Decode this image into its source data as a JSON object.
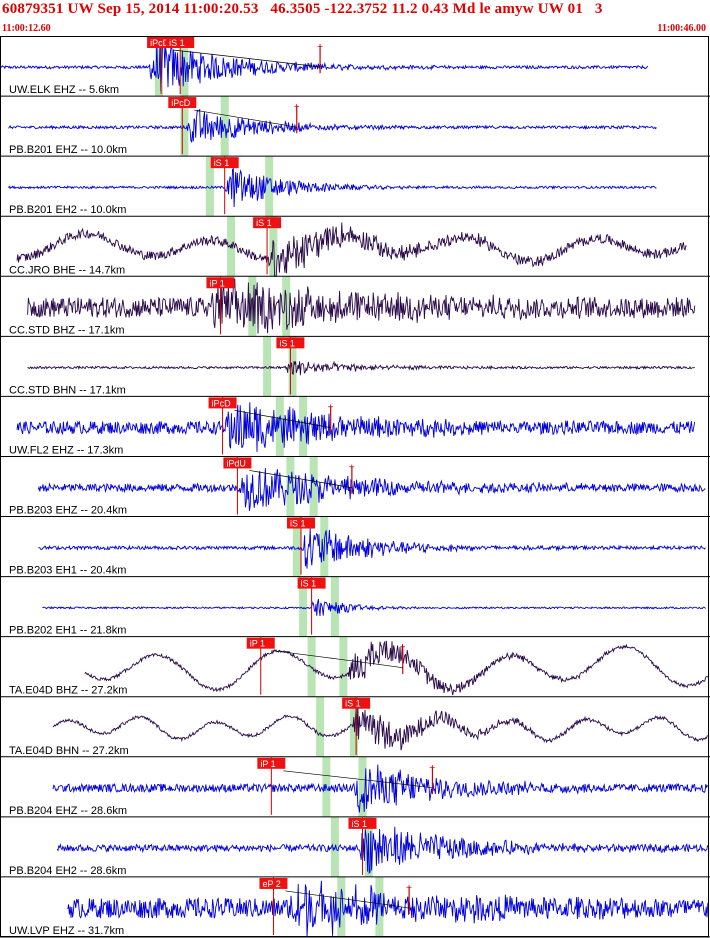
{
  "header": {
    "event_line": "60879351 UW Sep 15, 2014 11:00:20.53   46.3505 -122.3752 11.2 0.43 Md le amyw UW 01   3",
    "start_time": "11:00:12.60",
    "end_time": "11:00:46.00"
  },
  "time_window": {
    "start_s": 12.6,
    "end_s": 46.0
  },
  "colors": {
    "text": "#e00000",
    "trace_vertical": "#0000dd",
    "trace_broadband": "#2a0a4a",
    "pick_box": "#ee1111",
    "pick_line": "#cc0000",
    "band": "#b9e4b4",
    "border": "#000000"
  },
  "traces": [
    {
      "label": "UW.ELK EHZ -- 5.6km",
      "color": "blue",
      "noise": 0.05,
      "event_s": 19.6,
      "amp": 1.0,
      "decay": 3.5,
      "period": 0,
      "drift": 0,
      "start_s": 12.6,
      "end_s": 43.2,
      "picks": [
        {
          "text": "iPcD",
          "time_s": 20.2
        },
        {
          "text": "iS 1",
          "time_s": 21.1
        }
      ],
      "coda_mark_s": 27.7
    },
    {
      "label": "PB.B201 EHZ -- 10.0km",
      "color": "blue",
      "noise": 0.05,
      "event_s": 21.4,
      "amp": 0.7,
      "decay": 3.0,
      "period": 0,
      "drift": 0,
      "start_s": 13.0,
      "end_s": 43.6,
      "picks": [
        {
          "text": "iPcD",
          "time_s": 21.2
        }
      ],
      "coda_mark_s": 26.6
    },
    {
      "label": "PB.B201 EH2 -- 10.0km",
      "color": "blue",
      "noise": 0.04,
      "event_s": 23.2,
      "amp": 0.8,
      "decay": 2.5,
      "period": 0,
      "drift": 0,
      "start_s": 13.0,
      "end_s": 43.6,
      "picks": [
        {
          "text": "iS 1",
          "time_s": 23.2
        }
      ],
      "coda_mark_s": null
    },
    {
      "label": "CC.JRO BHE -- 14.7km",
      "color": "purple",
      "noise": 0.16,
      "event_s": 25.2,
      "amp": 0.7,
      "decay": 5.0,
      "period": 6.0,
      "drift": 0.35,
      "start_s": 13.4,
      "end_s": 45.0,
      "picks": [
        {
          "text": "iS 1",
          "time_s": 25.2
        }
      ],
      "coda_mark_s": null
    },
    {
      "label": "CC.STD BHZ -- 17.1km",
      "color": "purple",
      "noise": 0.35,
      "event_s": 22.5,
      "amp": 0.9,
      "decay": 6.0,
      "period": 0,
      "drift": 0,
      "start_s": 13.9,
      "end_s": 45.4,
      "picks": [
        {
          "text": "iP 1",
          "time_s": 23.0
        }
      ],
      "coda_mark_s": null
    },
    {
      "label": "CC.STD BHN -- 17.1km",
      "color": "purple",
      "noise": 0.04,
      "event_s": 26.0,
      "amp": 0.3,
      "decay": 3.0,
      "period": 0,
      "drift": 0,
      "start_s": 13.9,
      "end_s": 45.4,
      "picks": [
        {
          "text": "iS 1",
          "time_s": 26.3
        }
      ],
      "coda_mark_s": null
    },
    {
      "label": "UW.FL2 EHZ -- 17.3km",
      "color": "blue",
      "noise": 0.22,
      "event_s": 23.2,
      "amp": 0.9,
      "decay": 5.0,
      "period": 0,
      "drift": 0,
      "start_s": 13.4,
      "end_s": 45.4,
      "picks": [
        {
          "text": "iPcD",
          "time_s": 23.1
        }
      ],
      "coda_mark_s": 28.2
    },
    {
      "label": "PB.B203 EHZ -- 20.4km",
      "color": "blue",
      "noise": 0.14,
      "event_s": 23.9,
      "amp": 0.8,
      "decay": 5.0,
      "period": 0,
      "drift": 0,
      "start_s": 14.4,
      "end_s": 45.9,
      "picks": [
        {
          "text": "iPdU",
          "time_s": 23.8
        }
      ],
      "coda_mark_s": 29.2
    },
    {
      "label": "PB.B203 EH1 -- 20.4km",
      "color": "blue",
      "noise": 0.06,
      "event_s": 26.8,
      "amp": 0.85,
      "decay": 3.0,
      "period": 0,
      "drift": 0,
      "start_s": 14.4,
      "end_s": 45.9,
      "picks": [
        {
          "text": "iS 1",
          "time_s": 26.8
        }
      ],
      "coda_mark_s": null
    },
    {
      "label": "PB.B202 EH1 -- 21.8km",
      "color": "blue",
      "noise": 0.03,
      "event_s": 27.2,
      "amp": 0.4,
      "decay": 1.5,
      "period": 0,
      "drift": 0,
      "start_s": 14.6,
      "end_s": 45.9,
      "picks": [
        {
          "text": "iS 1",
          "time_s": 27.3
        }
      ],
      "coda_mark_s": null
    },
    {
      "label": "TA.E04D BHZ -- 27.2km",
      "color": "purple",
      "noise": 0.06,
      "event_s": 29.0,
      "amp": 0.6,
      "decay": 4.0,
      "period": 5.5,
      "drift": 0.55,
      "start_s": 16.6,
      "end_s": 46.0,
      "picks": [
        {
          "text": "iP 1",
          "time_s": 24.9
        }
      ],
      "coda_mark_s": 31.6
    },
    {
      "label": "TA.E04D BHN -- 27.2km",
      "color": "purple",
      "noise": 0.06,
      "event_s": 29.2,
      "amp": 0.75,
      "decay": 3.5,
      "period": 3.5,
      "drift": 0.3,
      "start_s": 15.1,
      "end_s": 46.0,
      "picks": [
        {
          "text": "iS 1",
          "time_s": 29.4
        }
      ],
      "coda_mark_s": null
    },
    {
      "label": "PB.B204 EHZ -- 28.6km",
      "color": "blue",
      "noise": 0.14,
      "event_s": 29.2,
      "amp": 0.9,
      "decay": 4.0,
      "period": 0,
      "drift": 0,
      "start_s": 15.1,
      "end_s": 46.0,
      "picks": [
        {
          "text": "iP 1",
          "time_s": 25.4
        }
      ],
      "coda_mark_s": 33.0
    },
    {
      "label": "PB.B204 EH2 -- 28.6km",
      "color": "blue",
      "noise": 0.12,
      "event_s": 29.5,
      "amp": 0.95,
      "decay": 4.0,
      "period": 0,
      "drift": 0,
      "start_s": 15.3,
      "end_s": 46.0,
      "picks": [
        {
          "text": "iS 1",
          "time_s": 29.7
        }
      ],
      "coda_mark_s": null
    },
    {
      "label": "UW.LVP EHZ -- 31.7km",
      "color": "blue",
      "noise": 0.35,
      "event_s": 26.2,
      "amp": 0.9,
      "decay": 6.0,
      "period": 0,
      "drift": 0,
      "start_s": 15.8,
      "end_s": 46.0,
      "picks": [
        {
          "text": "eP 2",
          "time_s": 25.5
        }
      ],
      "coda_mark_s": 31.9
    }
  ],
  "bands": {
    "p_times_s": [
      20.1,
      21.3,
      22.5,
      23.5,
      24.5,
      25.2,
      25.8,
      26.3,
      26.6,
      26.9,
      27.3,
      27.7,
      28.0,
      28.4,
      28.7
    ],
    "s_times_s": [
      21.3,
      23.2,
      25.3,
      25.5,
      26.1,
      26.4,
      26.9,
      27.4,
      27.9,
      28.4,
      28.8,
      29.3,
      29.7,
      30.0,
      30.5
    ]
  }
}
